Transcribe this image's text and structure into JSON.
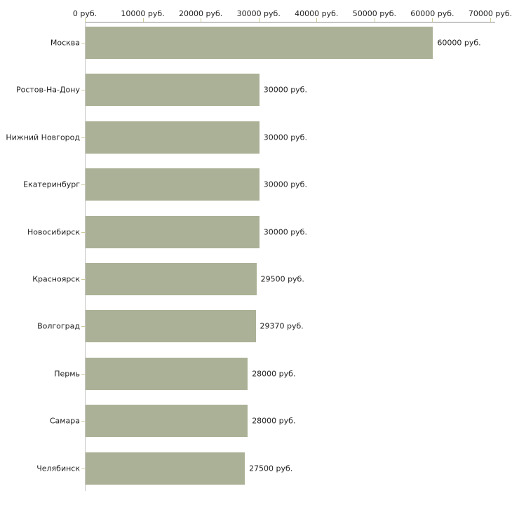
{
  "chart_data": {
    "type": "bar",
    "orientation": "horizontal",
    "title": "",
    "categories": [
      "Москва",
      "Ростов-На-Дону",
      "Нижний Новгород",
      "Екатеринбург",
      "Новосибирск",
      "Красноярск",
      "Волгоград",
      "Пермь",
      "Самара",
      "Челябинск"
    ],
    "values": [
      60000,
      30000,
      30000,
      30000,
      30000,
      29500,
      29370,
      28000,
      28000,
      27500
    ],
    "value_labels": [
      "60000 руб.",
      "30000 руб.",
      "30000 руб.",
      "30000 руб.",
      "30000 руб.",
      "29500 руб.",
      "29370 руб.",
      "28000 руб.",
      "28000 руб.",
      "27500 руб."
    ],
    "xlabel": "",
    "ylabel": "",
    "xlim": [
      0,
      70000
    ],
    "x_axis": {
      "position": "top",
      "tick_values": [
        0,
        10000,
        20000,
        30000,
        40000,
        50000,
        60000,
        70000
      ],
      "tick_labels": [
        "0 руб.",
        "10000 руб.",
        "20000 руб.",
        "30000 руб.",
        "40000 руб.",
        "50000 руб.",
        "60000 руб.",
        "70000 руб."
      ]
    },
    "grid": false,
    "legend": false,
    "colors": {
      "bar_fill": "#abb196",
      "axis_line": "#c6c6c6",
      "tick_mark": "#cccc99",
      "text": "#1f1f1f",
      "background": "#ffffff"
    }
  }
}
